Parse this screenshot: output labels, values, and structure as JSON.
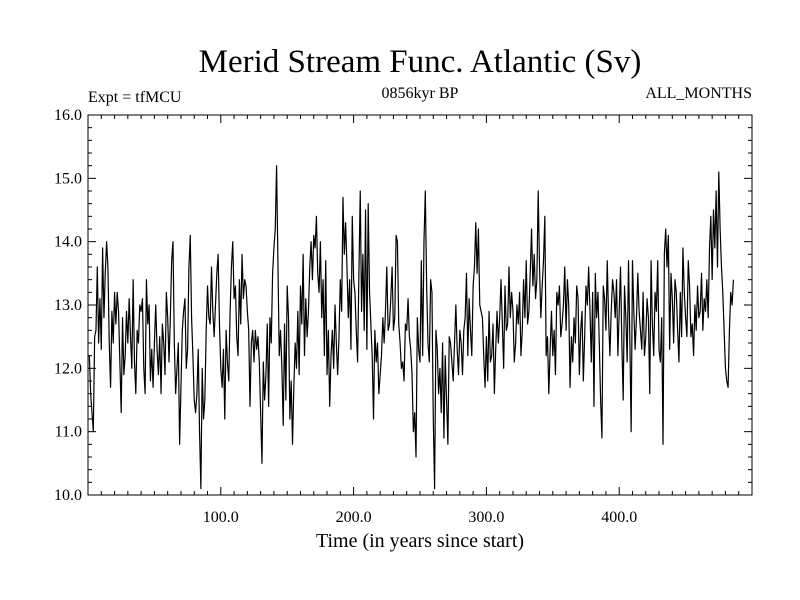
{
  "chart_data": {
    "type": "line",
    "title": "Merid Stream Func. Atlantic (Sv)",
    "subtitle_left": "Expt = tfMCU",
    "subtitle_center": "0856kyr BP",
    "subtitle_right": "ALL_MONTHS",
    "xlabel": "Time (in years since start)",
    "ylabel": "",
    "xlim": [
      0,
      500
    ],
    "ylim": [
      10.0,
      16.0
    ],
    "xticks": [
      100,
      200,
      300,
      400
    ],
    "xtick_labels": [
      "100.0",
      "200.0",
      "300.0",
      "400.0"
    ],
    "yticks": [
      10,
      11,
      12,
      13,
      14,
      15,
      16
    ],
    "ytick_labels": [
      "10.0",
      "11.0",
      "12.0",
      "13.0",
      "14.0",
      "15.0",
      "16.0"
    ],
    "series": [
      {
        "name": "Merid Stream Func.",
        "x_start": 1,
        "x_step": 1,
        "values": [
          12.2,
          11.6,
          11.3,
          11.0,
          12.5,
          12.6,
          13.6,
          12.4,
          13.1,
          12.3,
          13.9,
          12.8,
          13.5,
          14.0,
          13.6,
          12.4,
          11.7,
          12.9,
          12.4,
          13.2,
          12.7,
          13.2,
          12.9,
          12.1,
          11.3,
          12.8,
          11.9,
          12.2,
          12.9,
          12.4,
          13.1,
          12.5,
          12.0,
          13.4,
          12.1,
          11.6,
          12.6,
          12.4,
          13.0,
          12.9,
          13.1,
          12.0,
          11.6,
          13.4,
          12.7,
          13.0,
          11.8,
          12.3,
          11.7,
          12.4,
          13.0,
          12.3,
          11.9,
          12.5,
          11.6,
          12.7,
          12.4,
          11.9,
          13.2,
          12.8,
          12.1,
          12.8,
          13.7,
          14.0,
          12.4,
          11.6,
          12.0,
          12.4,
          10.8,
          11.7,
          12.6,
          12.9,
          13.1,
          12.0,
          12.3,
          13.6,
          14.1,
          12.8,
          12.2,
          11.5,
          11.3,
          11.6,
          12.3,
          11.0,
          10.1,
          12.0,
          11.2,
          11.5,
          12.6,
          13.3,
          12.8,
          12.7,
          13.6,
          12.9,
          12.5,
          13.0,
          13.5,
          13.8,
          12.7,
          12.0,
          11.7,
          12.3,
          11.2,
          12.6,
          12.1,
          11.8,
          12.9,
          13.6,
          14.0,
          13.1,
          13.3,
          12.5,
          12.2,
          13.4,
          12.7,
          13.8,
          13.1,
          13.4,
          13.3,
          12.9,
          12.6,
          11.4,
          12.4,
          12.6,
          12.1,
          12.6,
          12.3,
          12.5,
          12.1,
          11.3,
          10.5,
          12.1,
          11.5,
          11.9,
          12.7,
          11.4,
          12.8,
          12.4,
          13.5,
          13.9,
          14.2,
          15.2,
          13.7,
          12.2,
          12.6,
          12.0,
          11.1,
          12.7,
          11.5,
          13.3,
          12.8,
          11.2,
          11.8,
          10.8,
          11.7,
          12.4,
          12.0,
          12.9,
          11.9,
          13.3,
          12.7,
          13.8,
          12.2,
          13.1,
          12.5,
          12.9,
          13.6,
          14.0,
          13.4,
          14.1,
          13.9,
          14.4,
          13.5,
          13.2,
          14.0,
          12.8,
          13.4,
          12.2,
          13.7,
          11.9,
          12.6,
          11.4,
          12.2,
          12.6,
          12.0,
          13.0,
          12.4,
          11.9,
          12.5,
          13.4,
          12.9,
          14.7,
          13.8,
          14.3,
          13.6,
          12.8,
          13.4,
          12.3,
          14.4,
          13.4,
          13.2,
          12.6,
          12.1,
          13.5,
          14.8,
          12.9,
          13.8,
          12.6,
          14.5,
          12.3,
          14.6,
          13.2,
          12.7,
          12.2,
          11.2,
          12.6,
          12.1,
          12.4,
          11.6,
          11.9,
          12.2,
          12.8,
          12.4,
          12.9,
          13.6,
          12.6,
          12.7,
          13.1,
          13.6,
          12.6,
          12.8,
          14.1,
          14.0,
          12.7,
          12.4,
          12.0,
          12.1,
          11.8,
          12.7,
          12.6,
          13.1,
          12.5,
          12.3,
          11.9,
          11.0,
          11.3,
          10.6,
          12.8,
          12.3,
          12.1,
          13.7,
          12.2,
          14.0,
          14.8,
          13.3,
          12.4,
          12.1,
          13.4,
          13.2,
          11.2,
          10.1,
          12.6,
          12.3,
          11.6,
          12.0,
          11.3,
          12.4,
          10.9,
          12.2,
          11.5,
          10.8,
          12.5,
          12.4,
          12.1,
          11.8,
          12.4,
          13.0,
          12.3,
          11.9,
          12.6,
          12.4,
          11.9,
          12.6,
          12.8,
          13.5,
          12.2,
          13.1,
          12.6,
          12.2,
          13.3,
          13.6,
          14.3,
          13.5,
          14.2,
          13.0,
          12.9,
          12.8,
          12.2,
          11.7,
          12.5,
          11.8,
          12.9,
          12.1,
          12.2,
          12.7,
          11.6,
          12.3,
          12.9,
          12.4,
          12.8,
          13.4,
          12.7,
          12.0,
          13.3,
          12.6,
          12.7,
          13.6,
          12.8,
          13.2,
          12.9,
          12.1,
          12.4,
          13.0,
          12.7,
          13.2,
          12.2,
          12.6,
          13.4,
          12.8,
          13.7,
          12.7,
          12.9,
          13.5,
          14.2,
          13.3,
          13.8,
          13.1,
          13.4,
          14.8,
          13.6,
          12.8,
          13.3,
          13.7,
          14.4,
          12.2,
          12.5,
          11.6,
          12.3,
          12.9,
          12.2,
          12.6,
          11.9,
          13.2,
          13.0,
          13.3,
          12.5,
          12.7,
          13.0,
          13.6,
          12.6,
          13.4,
          13.0,
          11.7,
          12.5,
          12.1,
          12.8,
          12.4,
          13.3,
          13.1,
          11.9,
          12.6,
          12.9,
          11.8,
          12.5,
          13.3,
          13.0,
          13.6,
          12.9,
          12.1,
          13.2,
          11.4,
          13.5,
          12.8,
          13.2,
          12.4,
          11.5,
          10.9,
          13.3,
          13.1,
          12.6,
          13.7,
          12.8,
          12.2,
          12.9,
          13.4,
          13.2,
          12.8,
          13.4,
          12.2,
          12.9,
          13.6,
          12.4,
          11.5,
          13.3,
          12.8,
          12.1,
          13.7,
          12.5,
          11.0,
          13.7,
          12.9,
          12.3,
          12.8,
          13.5,
          12.9,
          12.6,
          12.3,
          13.2,
          12.2,
          12.5,
          13.1,
          12.8,
          11.6,
          13.7,
          12.7,
          12.2,
          13.2,
          12.9,
          13.7,
          12.3,
          12.1,
          12.8,
          10.8,
          13.8,
          14.2,
          13.6,
          14.1,
          12.3,
          13.5,
          13.1,
          12.4,
          13.4,
          13.2,
          12.6,
          12.1,
          13.2,
          12.5,
          13.9,
          13.2,
          12.8,
          12.5,
          13.7,
          13.3,
          12.5,
          12.7,
          12.2,
          13.0,
          12.6,
          13.3,
          12.8,
          12.9,
          13.5,
          12.6,
          13.1,
          12.9,
          13.4,
          12.8,
          13.9,
          14.4,
          13.4,
          14.5,
          13.9,
          14.8,
          13.6,
          15.1,
          14.2,
          13.6,
          13.2,
          12.6,
          12.0,
          11.8,
          11.7,
          12.6,
          13.2,
          13.0,
          13.4
        ]
      }
    ]
  }
}
